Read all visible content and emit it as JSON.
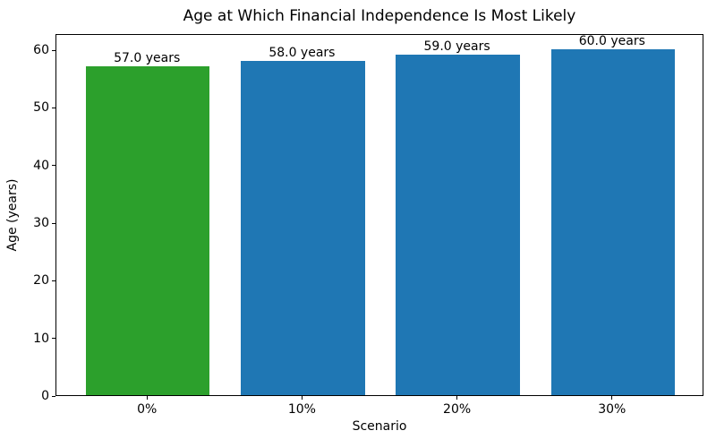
{
  "chart_data": {
    "type": "bar",
    "title": "Age at Which Financial Independence Is Most Likely",
    "xlabel": "Scenario",
    "ylabel": "Age (years)",
    "categories": [
      "0%",
      "10%",
      "20%",
      "30%"
    ],
    "values": [
      57.0,
      58.0,
      59.0,
      60.0
    ],
    "bar_labels": [
      "57.0 years",
      "58.0 years",
      "59.0 years",
      "60.0 years"
    ],
    "bar_colors": [
      "#2ca02c",
      "#1f77b4",
      "#1f77b4",
      "#1f77b4"
    ],
    "ylim": [
      0,
      62.8
    ],
    "yticks": [
      0,
      10,
      20,
      30,
      40,
      50,
      60
    ],
    "bar_width_units": 0.8,
    "grid": false,
    "legend": "none",
    "axis_color": "#000000",
    "background_color": "#ffffff"
  }
}
